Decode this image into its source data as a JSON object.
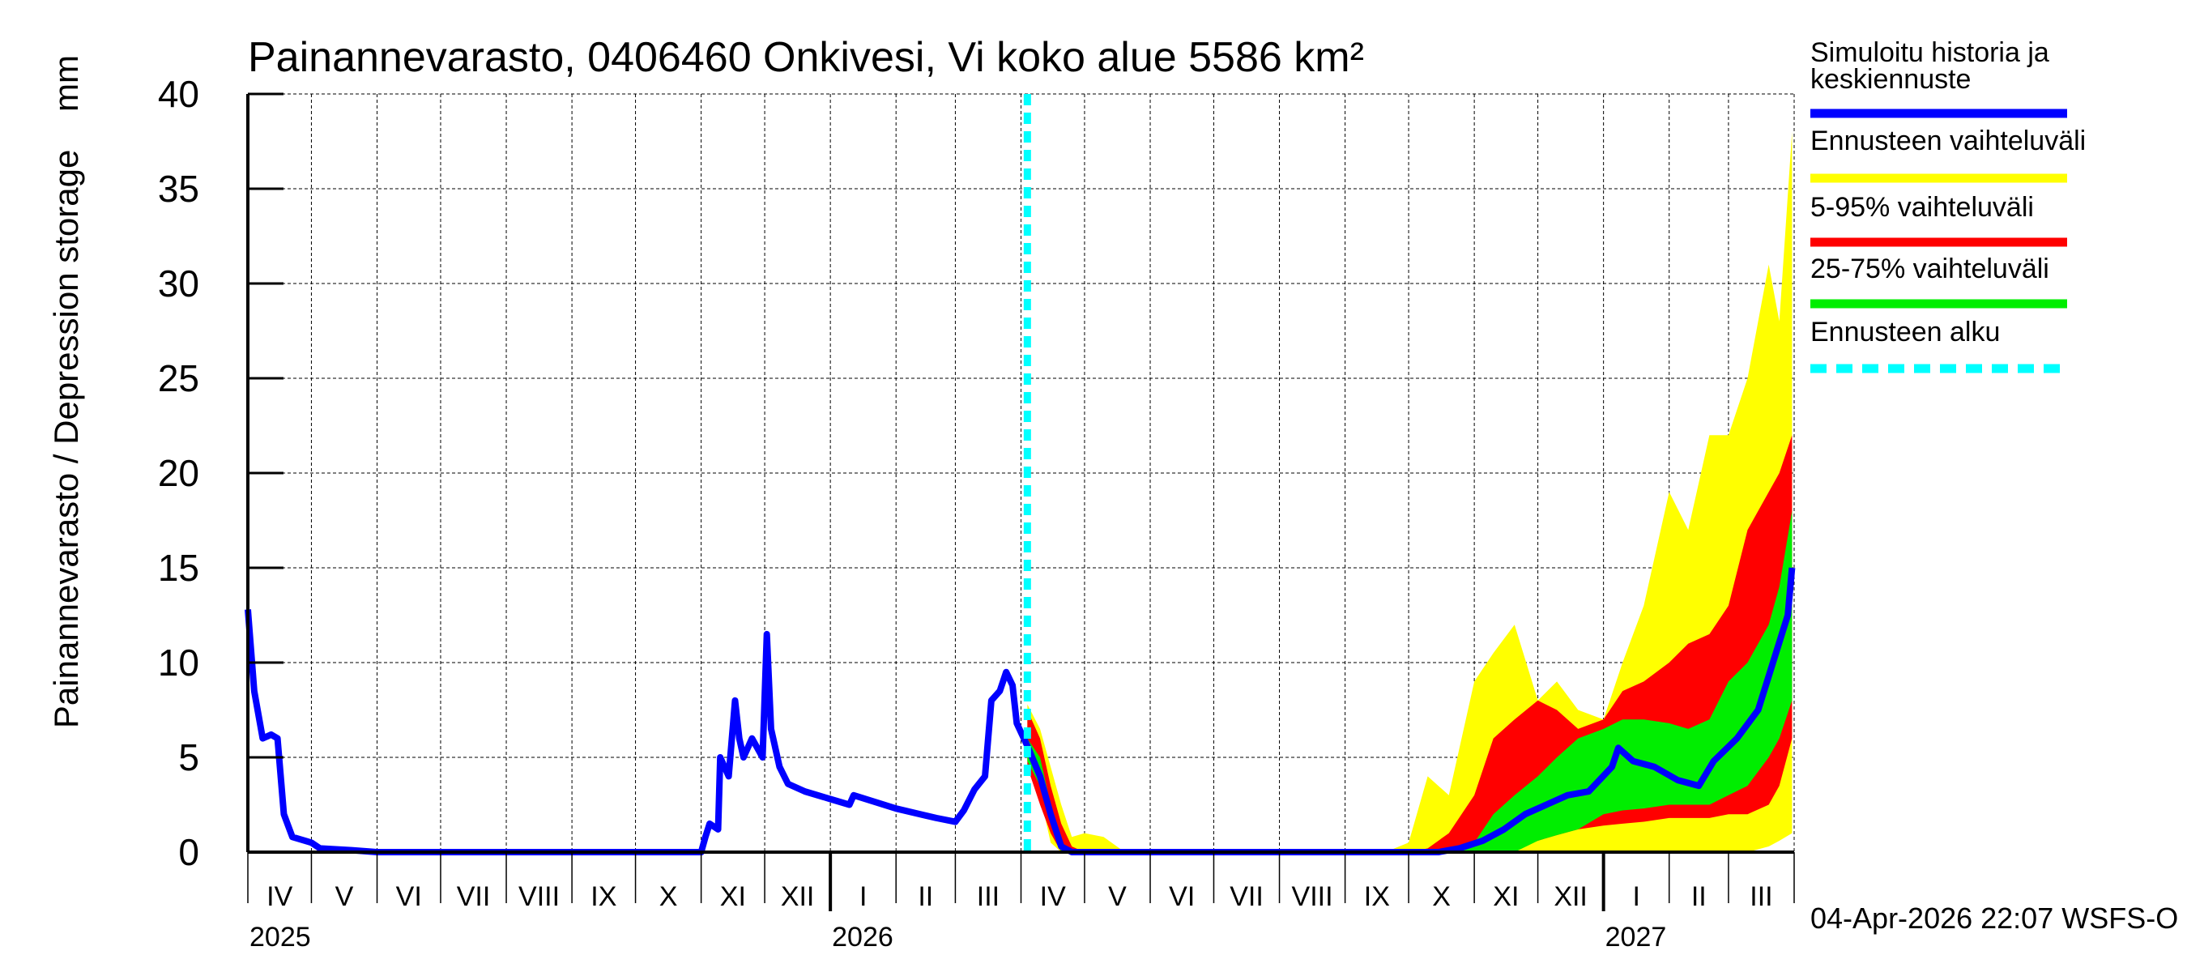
{
  "chart_data": {
    "type": "area",
    "title": "Painannevarasto, 0406460 Onkivesi, Vi koko alue 5586 km²",
    "ylabel": "Painannevarasto / Depression storage    mm",
    "xlabel": "",
    "ylim": [
      0,
      40
    ],
    "yticks": [
      "0",
      "5",
      "10",
      "15",
      "20",
      "25",
      "30",
      "35",
      "40"
    ],
    "xlim": [
      "2025-04-01",
      "2027-04-01"
    ],
    "grid": true,
    "legend_position": "right",
    "month_labels": [
      "IV",
      "V",
      "VI",
      "VII",
      "VIII",
      "IX",
      "X",
      "XI",
      "XII",
      "I",
      "II",
      "III",
      "IV",
      "V",
      "VI",
      "VII",
      "VIII",
      "IX",
      "X",
      "XI",
      "XII",
      "I",
      "II",
      "III"
    ],
    "year_labels": [
      {
        "year": "2025",
        "date": "2025-04-01"
      },
      {
        "year": "2026",
        "date": "2026-01-01"
      },
      {
        "year": "2027",
        "date": "2027-01-01"
      }
    ],
    "forecast_start": "2026-04-04",
    "colors": {
      "history": "#0000ff",
      "range": "#ffff00",
      "p5_95": "#ff0000",
      "p25_75": "#00ee00",
      "forecast_start": "#00ffff"
    },
    "legend": [
      {
        "label_lines": [
          "Simuloitu historia ja",
          "keskiennuste"
        ],
        "color": "#0000ff",
        "style": "solid"
      },
      {
        "label_lines": [
          "Ennusteen vaihteluväli"
        ],
        "color": "#ffff00",
        "style": "solid"
      },
      {
        "label_lines": [
          "5-95% vaihteluväli"
        ],
        "color": "#ff0000",
        "style": "solid"
      },
      {
        "label_lines": [
          "25-75% vaihteluväli"
        ],
        "color": "#00ee00",
        "style": "solid"
      },
      {
        "label_lines": [
          "Ennusteen alku"
        ],
        "color": "#00ffff",
        "style": "dashed"
      }
    ],
    "history": [
      [
        "2025-04-01",
        12.8
      ],
      [
        "2025-04-04",
        8.5
      ],
      [
        "2025-04-08",
        6.0
      ],
      [
        "2025-04-12",
        6.2
      ],
      [
        "2025-04-15",
        6.0
      ],
      [
        "2025-04-18",
        2.0
      ],
      [
        "2025-04-22",
        0.8
      ],
      [
        "2025-05-01",
        0.5
      ],
      [
        "2025-05-05",
        0.2
      ],
      [
        "2025-05-20",
        0.1
      ],
      [
        "2025-06-01",
        0
      ],
      [
        "2025-11-01",
        0
      ],
      [
        "2025-11-03",
        0.8
      ],
      [
        "2025-11-05",
        1.5
      ],
      [
        "2025-11-09",
        1.2
      ],
      [
        "2025-11-10",
        5.0
      ],
      [
        "2025-11-14",
        4.0
      ],
      [
        "2025-11-17",
        8.0
      ],
      [
        "2025-11-19",
        6.0
      ],
      [
        "2025-11-21",
        5.0
      ],
      [
        "2025-11-25",
        6.0
      ],
      [
        "2025-11-30",
        5.0
      ],
      [
        "2025-12-02",
        11.5
      ],
      [
        "2025-12-04",
        6.5
      ],
      [
        "2025-12-08",
        4.5
      ],
      [
        "2025-12-12",
        3.6
      ],
      [
        "2025-12-20",
        3.2
      ],
      [
        "2026-01-01",
        2.8
      ],
      [
        "2026-01-10",
        2.5
      ],
      [
        "2026-01-12",
        3.0
      ],
      [
        "2026-02-01",
        2.3
      ],
      [
        "2026-02-20",
        1.8
      ],
      [
        "2026-03-01",
        1.6
      ],
      [
        "2026-03-05",
        2.2
      ],
      [
        "2026-03-10",
        3.3
      ],
      [
        "2026-03-15",
        4.0
      ],
      [
        "2026-03-18",
        8.0
      ],
      [
        "2026-03-22",
        8.5
      ],
      [
        "2026-03-25",
        9.5
      ],
      [
        "2026-03-28",
        8.8
      ],
      [
        "2026-03-30",
        6.8
      ],
      [
        "2026-04-04",
        5.6
      ]
    ],
    "median_forecast": [
      [
        "2026-04-04",
        5.6
      ],
      [
        "2026-04-10",
        4.0
      ],
      [
        "2026-04-15",
        2.0
      ],
      [
        "2026-04-20",
        0.3
      ],
      [
        "2026-04-25",
        0
      ],
      [
        "2026-10-15",
        0
      ],
      [
        "2026-10-25",
        0.2
      ],
      [
        "2026-11-05",
        0.6
      ],
      [
        "2026-11-15",
        1.2
      ],
      [
        "2026-11-25",
        2.0
      ],
      [
        "2026-12-05",
        2.5
      ],
      [
        "2026-12-15",
        3.0
      ],
      [
        "2026-12-25",
        3.2
      ],
      [
        "2027-01-05",
        4.5
      ],
      [
        "2027-01-08",
        5.5
      ],
      [
        "2027-01-15",
        4.8
      ],
      [
        "2027-01-25",
        4.5
      ],
      [
        "2027-02-05",
        3.8
      ],
      [
        "2027-02-15",
        3.5
      ],
      [
        "2027-02-22",
        4.8
      ],
      [
        "2027-03-05",
        6.0
      ],
      [
        "2027-03-15",
        7.5
      ],
      [
        "2027-03-22",
        10.0
      ],
      [
        "2027-03-29",
        12.5
      ],
      [
        "2027-03-31",
        15.0
      ]
    ],
    "band_dates": [
      "2026-04-04",
      "2026-04-10",
      "2026-04-15",
      "2026-04-20",
      "2026-04-25",
      "2026-05-01",
      "2026-05-10",
      "2026-05-20",
      "2026-06-01",
      "2026-09-20",
      "2026-10-01",
      "2026-10-10",
      "2026-10-20",
      "2026-11-01",
      "2026-11-10",
      "2026-11-20",
      "2026-12-01",
      "2026-12-10",
      "2026-12-20",
      "2027-01-01",
      "2027-01-10",
      "2027-01-20",
      "2027-02-01",
      "2027-02-10",
      "2027-02-20",
      "2027-03-01",
      "2027-03-10",
      "2027-03-20",
      "2027-03-25",
      "2027-03-31"
    ],
    "range_max": [
      7.8,
      6.5,
      4.5,
      2.5,
      0.8,
      1.0,
      0.8,
      0,
      0,
      0,
      0.5,
      4.0,
      3.0,
      9.0,
      10.5,
      12.0,
      8.0,
      9.0,
      7.5,
      7.0,
      10.0,
      13.0,
      19.0,
      17.0,
      22.0,
      22.0,
      25.0,
      31.0,
      28.0,
      38.0
    ],
    "range_min": [
      5.0,
      3.0,
      0.5,
      0,
      0,
      0,
      0,
      0,
      0,
      0,
      0,
      0,
      0,
      0,
      0,
      0,
      0,
      0,
      0,
      0,
      0,
      0,
      0,
      0,
      0,
      0,
      0,
      0.3,
      0.6,
      1.0
    ],
    "p95": [
      7.5,
      6.0,
      3.5,
      1.5,
      0.3,
      0,
      0,
      0,
      0,
      0,
      0,
      0.2,
      1.0,
      3.0,
      6.0,
      7.0,
      8.0,
      7.5,
      6.5,
      7.0,
      8.5,
      9.0,
      10.0,
      11.0,
      11.5,
      13.0,
      17.0,
      19.0,
      20.0,
      22.0
    ],
    "p5": [
      4.5,
      2.5,
      1.0,
      0,
      0,
      0,
      0,
      0,
      0,
      0,
      0,
      0,
      0,
      0,
      0,
      0.2,
      0.6,
      0.9,
      1.2,
      1.4,
      1.5,
      1.6,
      1.8,
      1.8,
      1.8,
      2.0,
      2.0,
      2.5,
      3.5,
      6.0
    ],
    "p75": [
      6.0,
      5.0,
      2.5,
      0.5,
      0,
      0,
      0,
      0,
      0,
      0,
      0,
      0,
      0,
      0.5,
      2.0,
      3.0,
      4.0,
      5.0,
      6.0,
      6.5,
      7.0,
      7.0,
      6.8,
      6.5,
      7.0,
      9.0,
      10.0,
      12.0,
      14.0,
      18.0
    ],
    "p25": [
      4.8,
      3.5,
      1.5,
      0,
      0,
      0,
      0,
      0,
      0,
      0,
      0,
      0,
      0,
      0,
      0,
      0,
      0.6,
      0.9,
      1.2,
      2.0,
      2.2,
      2.3,
      2.5,
      2.5,
      2.5,
      3.0,
      3.5,
      5.0,
      6.0,
      8.0
    ],
    "footer": "04-Apr-2026 22:07 WSFS-O"
  }
}
